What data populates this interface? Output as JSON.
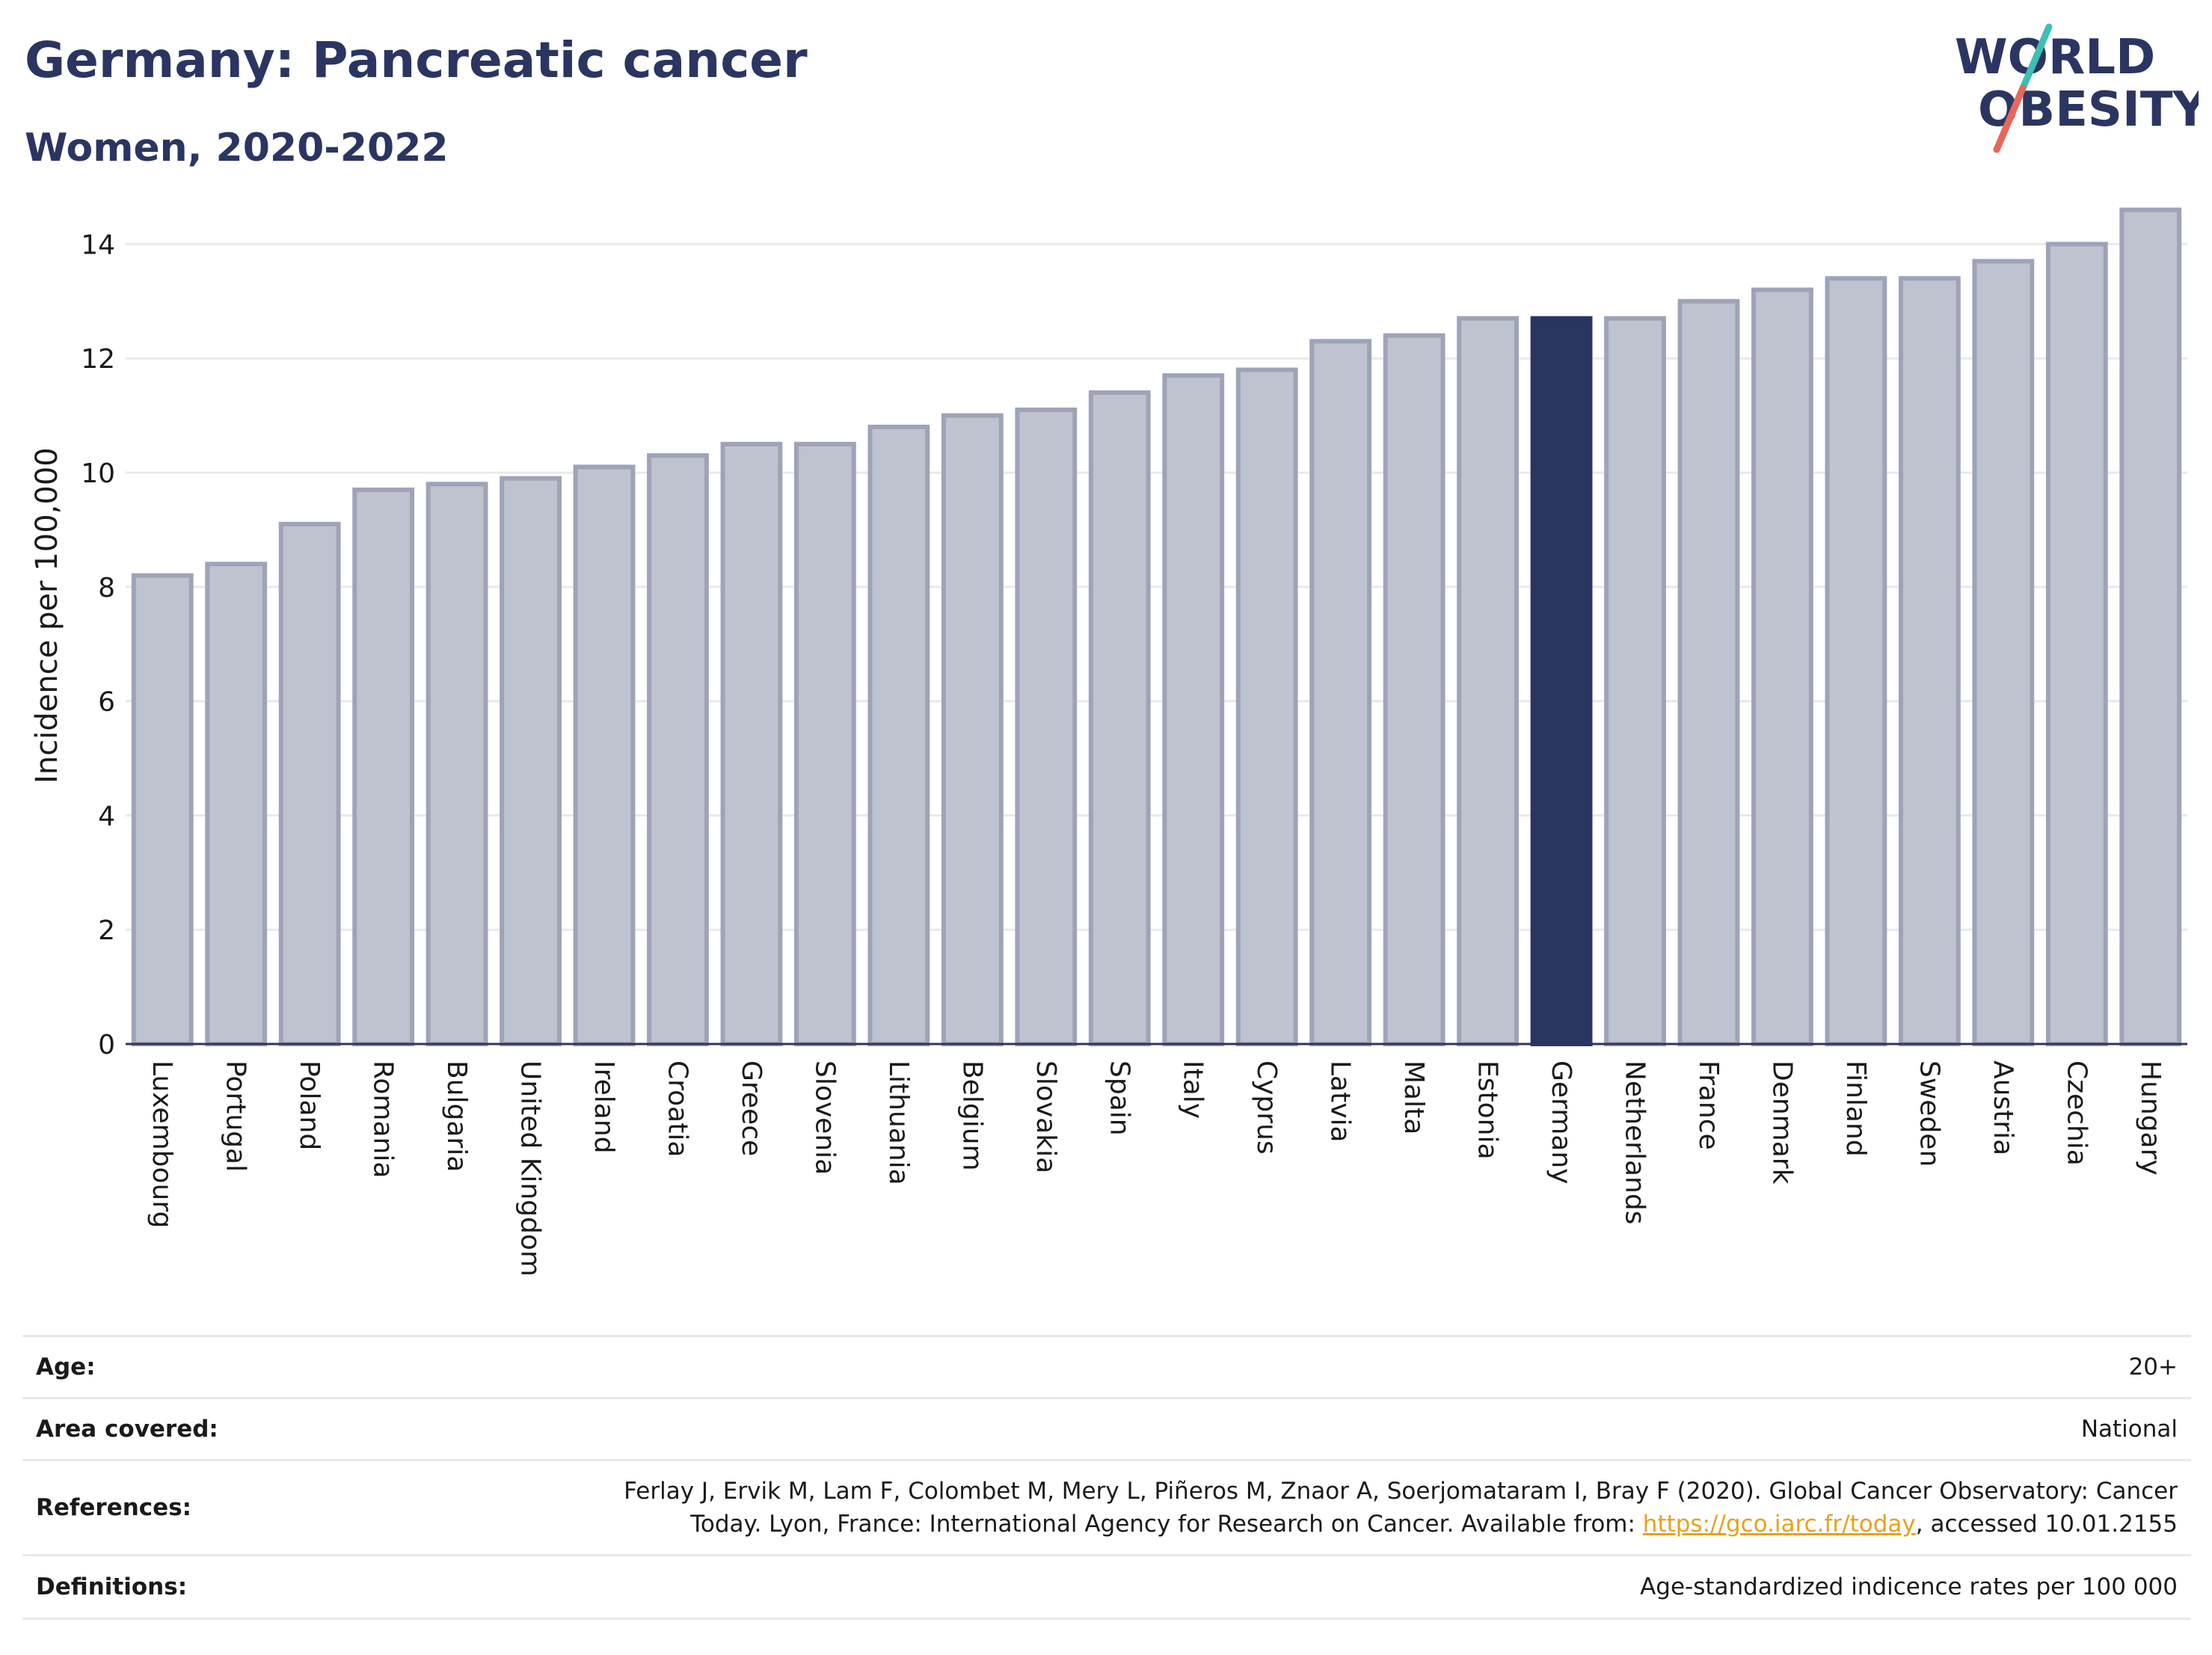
{
  "header": {
    "title": "Germany: Pancreatic cancer",
    "subtitle": "Women, 2020-2022",
    "logo": {
      "line1": "WORLD",
      "line2": "OBESITY",
      "accent_colors": [
        "#3cc0b4",
        "#e8665a"
      ]
    }
  },
  "chart_data": {
    "type": "bar",
    "categories": [
      "Luxembourg",
      "Portugal",
      "Poland",
      "Romania",
      "Bulgaria",
      "United Kingdom",
      "Ireland",
      "Croatia",
      "Greece",
      "Slovenia",
      "Lithuania",
      "Belgium",
      "Slovakia",
      "Spain",
      "Italy",
      "Cyprus",
      "Latvia",
      "Malta",
      "Estonia",
      "Germany",
      "Netherlands",
      "France",
      "Denmark",
      "Finland",
      "Sweden",
      "Austria",
      "Czechia",
      "Hungary"
    ],
    "values": [
      8.2,
      8.4,
      9.1,
      9.7,
      9.8,
      9.9,
      10.1,
      10.3,
      10.5,
      10.5,
      10.8,
      11.0,
      11.1,
      11.4,
      11.7,
      11.8,
      12.3,
      12.4,
      12.7,
      12.7,
      12.7,
      13.0,
      13.2,
      13.4,
      13.4,
      13.7,
      14.0,
      14.6
    ],
    "highlight": "Germany",
    "ylabel": "Incidence per 100,000",
    "xlabel": "",
    "ylim": [
      0,
      15
    ],
    "yticks": [
      0,
      2,
      4,
      6,
      8,
      10,
      12,
      14
    ],
    "grid": true,
    "colors": {
      "bar": "#bfc2cf",
      "bar_edge": "#9ea3b8",
      "highlight": "#2b3561",
      "axis": "#2b3561",
      "grid": "#e8e9ee"
    }
  },
  "meta": {
    "age": {
      "label": "Age:",
      "value": "20+"
    },
    "area": {
      "label": "Area covered:",
      "value": "National"
    },
    "references": {
      "label": "References:",
      "text_line1": "Ferlay J, Ervik M, Lam F, Colombet M, Mery L, Piñeros M, Znaor A, Soerjomataram I, Bray F (2020). Global Cancer Observatory: Cancer",
      "text_before_link": "Today. Lyon, France: International Agency for Research on Cancer. Available from: ",
      "link": "https://gco.iarc.fr/today",
      "text_after_link": ", accessed 10.01.2155"
    },
    "definitions": {
      "label": "Definitions:",
      "value": "Age-standardized indicence rates per 100 000"
    }
  }
}
